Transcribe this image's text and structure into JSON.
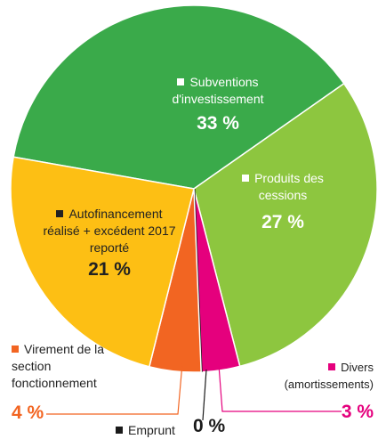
{
  "chart_data": {
    "type": "pie",
    "categories": [
      "Subventions d'investissement",
      "Produits des cessions",
      "Divers (amortissements)",
      "Emprunt",
      "Virement de la section fonctionnement",
      "Autofinancement réalisé + excédent 2017 reporté"
    ],
    "values": [
      33,
      27,
      3,
      0,
      4,
      21
    ],
    "value_labels": [
      "33 %",
      "27 %",
      "3 %",
      "0 %",
      "4 %",
      "21 %"
    ],
    "colors": [
      "#3aaa4a",
      "#8dc63f",
      "#e5007d",
      "#1a1a1a",
      "#f26522",
      "#fdbf14"
    ]
  }
}
